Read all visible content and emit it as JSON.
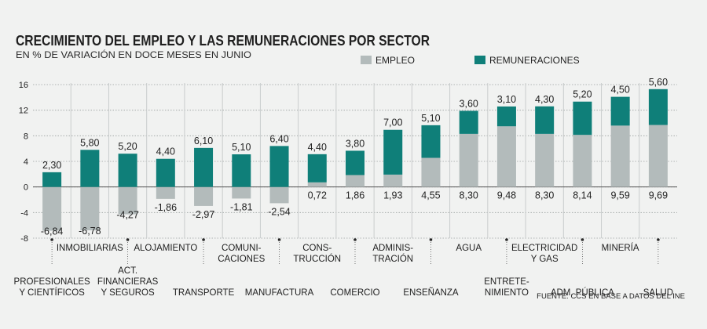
{
  "chart_data": {
    "type": "bar",
    "title": "CRECIMIENTO DEL EMPLEO Y LAS REMUNERACIONES POR SECTOR",
    "subtitle": "EN % DE VARIACIÓN EN DOCE MESES EN JUNIO",
    "source": "FUENTE: CCS EN BASE A DATOS DEL INE",
    "ylim": [
      -8,
      16
    ],
    "yticks": [
      -8,
      -4,
      0,
      4,
      8,
      12,
      16
    ],
    "ytick_labels": [
      "-8",
      "-4",
      "0",
      "4",
      "8",
      "12",
      "16"
    ],
    "legend_position": "top-right",
    "colors": {
      "empleo": "#b3bbbb",
      "remuneraciones": "#0f7f79"
    },
    "series": [
      {
        "name": "EMPLEO",
        "values": [
          -6.84,
          -6.78,
          -4.27,
          -1.86,
          -2.97,
          -1.81,
          -2.54,
          0.72,
          1.86,
          1.93,
          4.55,
          8.3,
          9.48,
          8.3,
          8.14,
          9.59,
          9.69
        ]
      },
      {
        "name": "REMUNERACIONES",
        "values": [
          2.3,
          5.8,
          5.2,
          4.4,
          6.1,
          5.1,
          6.4,
          4.4,
          3.8,
          7.0,
          5.1,
          3.6,
          3.1,
          4.3,
          5.2,
          4.5,
          5.6
        ]
      }
    ],
    "empleo_labels": [
      "-6,84",
      "-6,78",
      "-4,27",
      "-1,86",
      "-2,97",
      "-1,81",
      "-2,54",
      "0,72",
      "1,86",
      "1,93",
      "4,55",
      "8,30",
      "9,48",
      "8,30",
      "8,14",
      "9,59",
      "9,69"
    ],
    "remuneraciones_labels": [
      "2,30",
      "5,80",
      "5,20",
      "4,40",
      "6,10",
      "5,10",
      "6,40",
      "4,40",
      "3,80",
      "7,00",
      "5,10",
      "3,60",
      "3,10",
      "4,30",
      "5,20",
      "4,50",
      "5,60"
    ],
    "categories": [
      [
        "PROFESIONALES",
        "Y CIENTÍFICOS"
      ],
      [
        "INMOBILIARIAS"
      ],
      [
        "ACT.",
        "FINANCIERAS",
        "Y SEGUROS"
      ],
      [
        "ALOJAMIENTO"
      ],
      [
        "TRANSPORTE"
      ],
      [
        "COMUNI-",
        "CACIONES"
      ],
      [
        "MANUFACTURA"
      ],
      [
        "CONS-",
        "TRUCCIÓN"
      ],
      [
        "COMERCIO"
      ],
      [
        "ADMINIS-",
        "TRACIÓN"
      ],
      [
        "ENSEÑANZA"
      ],
      [
        "AGUA"
      ],
      [
        "ENTRETE-",
        "NIMIENTO"
      ],
      [
        "ELECTRICIDAD",
        "Y GAS"
      ],
      [
        "ADM. PÚBLICA"
      ],
      [
        "MINERÍA"
      ],
      [
        "SALUD"
      ]
    ]
  }
}
